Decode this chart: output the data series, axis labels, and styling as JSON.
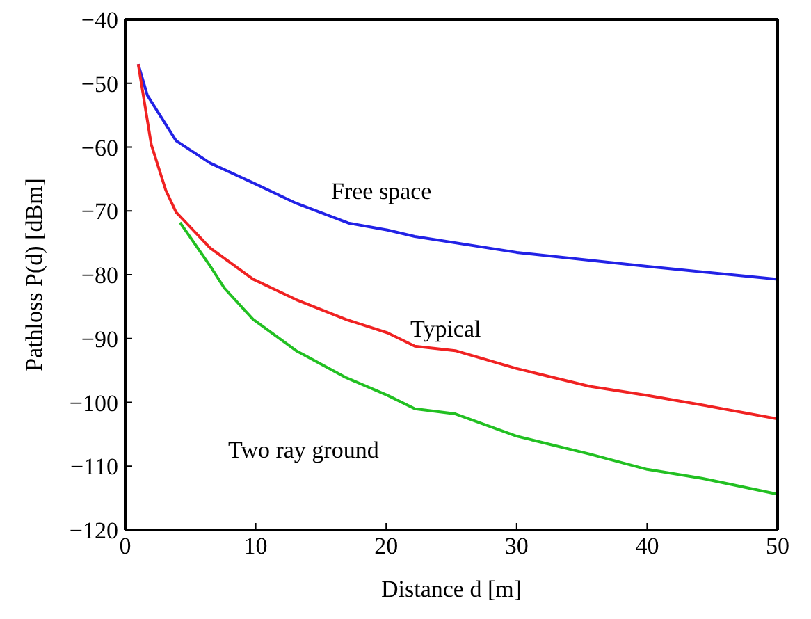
{
  "chart_data": {
    "type": "line",
    "xlabel": "Distance d [m]",
    "ylabel": "Pathloss P(d) [dBm]",
    "xlim": [
      0,
      50
    ],
    "xticks": [
      0,
      10,
      20,
      30,
      40,
      50
    ],
    "ylim": [
      -120,
      -40
    ],
    "yticks": [
      -120,
      -110,
      -100,
      -90,
      -80,
      -70,
      -60,
      -50,
      -40
    ],
    "grid": false,
    "legend": false,
    "marker": "none",
    "line_style": "solid",
    "series": [
      {
        "color": "#2222e6",
        "x": [
          1.0,
          1.7,
          3.9,
          6.5,
          9.8,
          13.1,
          17.1,
          20.1,
          22.2,
          30,
          40,
          50
        ],
        "values": [
          -47,
          -51.9,
          -59,
          -62.5,
          -65.6,
          -68.8,
          -71.9,
          -73,
          -74,
          -76.5,
          -78.7,
          -80.7
        ]
      },
      {
        "color": "#22c022",
        "x": [
          4.2,
          6.5,
          7.6,
          9.8,
          13.1,
          16.9,
          20.1,
          22.2,
          25.3,
          30,
          35.6,
          40,
          44.2,
          50
        ],
        "values": [
          -71.8,
          -78.6,
          -82.1,
          -87,
          -91.9,
          -96.1,
          -98.9,
          -101,
          -101.8,
          -105.3,
          -108.1,
          -110.5,
          -111.9,
          -114.4
        ]
      },
      {
        "color": "#f02222",
        "x": [
          1.0,
          2.0,
          3.1,
          3.9,
          6.5,
          9.8,
          13.1,
          16.9,
          20.1,
          22.2,
          25.3,
          30,
          35.6,
          40,
          44.2,
          50
        ],
        "values": [
          -47,
          -59.6,
          -66.7,
          -70.2,
          -75.8,
          -80.7,
          -83.9,
          -87,
          -89.1,
          -91.2,
          -91.9,
          -94.7,
          -97.5,
          -98.9,
          -100.4,
          -102.6
        ]
      }
    ],
    "annotations": [
      "Free space",
      "Typical",
      "Two ray ground"
    ]
  }
}
